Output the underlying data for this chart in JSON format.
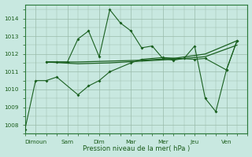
{
  "background_color": "#c8e8e0",
  "line_color": "#1a6020",
  "grid_color": "#99bbaa",
  "xlabel": "Pression niveau de la mer( hPa )",
  "ylim": [
    1007.5,
    1014.8
  ],
  "yticks": [
    1008,
    1009,
    1010,
    1011,
    1012,
    1013,
    1014
  ],
  "xtick_labels": [
    "Dimoun",
    "Sam",
    "Dim",
    "Mar",
    "Mer",
    "Jeu",
    "Ven"
  ],
  "xtick_pos": [
    1,
    4,
    7,
    10,
    13,
    16,
    19
  ],
  "xlim": [
    0,
    21
  ],
  "line1_x": [
    0,
    1,
    2,
    3,
    5,
    6,
    7,
    8,
    10,
    11,
    13,
    16,
    17,
    19,
    20
  ],
  "line1_y": [
    1007.75,
    1010.5,
    1010.5,
    1010.7,
    1009.7,
    1010.2,
    1010.5,
    1011.0,
    1011.5,
    1011.7,
    1011.8,
    1011.7,
    1011.75,
    1011.1,
    1012.75
  ],
  "line2_x": [
    2,
    3,
    4,
    5,
    6,
    7,
    8,
    9,
    10,
    11,
    12,
    13,
    14,
    15,
    16,
    17,
    18,
    19,
    20
  ],
  "line2_y": [
    1011.55,
    1011.55,
    1011.55,
    1012.85,
    1013.3,
    1011.85,
    1014.5,
    1013.75,
    1013.3,
    1012.35,
    1012.45,
    1011.75,
    1011.65,
    1011.75,
    1012.45,
    1009.5,
    1008.75,
    1011.1,
    1012.75
  ],
  "line3_x": [
    2,
    5,
    8,
    11,
    14,
    17,
    20
  ],
  "line3_y": [
    1011.55,
    1011.55,
    1011.6,
    1011.65,
    1011.75,
    1012.0,
    1012.75
  ],
  "line4_x": [
    2,
    5,
    8,
    11,
    14,
    17,
    20
  ],
  "line4_y": [
    1011.55,
    1011.45,
    1011.5,
    1011.6,
    1011.7,
    1011.85,
    1012.5
  ]
}
